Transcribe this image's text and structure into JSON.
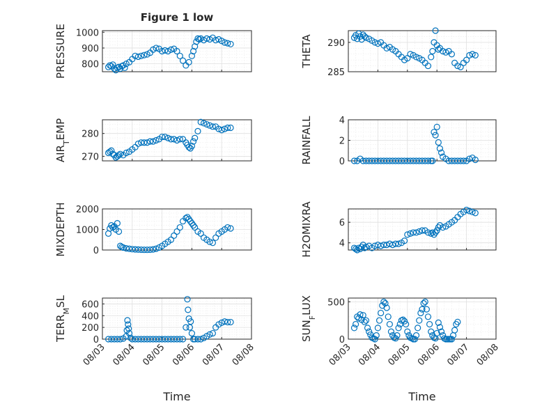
{
  "chart_data": [
    {
      "type": "scatter",
      "title": "Figure 1 low",
      "ylabel": "PRESSURE",
      "ylim": [
        750,
        1010
      ],
      "yticks": [
        800,
        900,
        1000
      ],
      "xlim": [
        "08/03",
        "08/08"
      ],
      "grid": true,
      "series": [
        {
          "x": [
            3.2,
            3.25,
            3.3,
            3.35,
            3.4,
            3.45,
            3.5,
            3.55,
            3.6,
            3.65,
            3.7,
            3.75,
            3.8,
            3.9,
            4.0,
            4.1,
            4.2,
            4.3,
            4.4,
            4.5,
            4.6,
            4.7,
            4.8,
            4.9,
            5.0,
            5.1,
            5.2,
            5.3,
            5.4,
            5.5,
            5.6,
            5.7,
            5.8,
            5.9,
            6.0,
            6.05,
            6.1,
            6.15,
            6.2,
            6.25,
            6.3,
            6.4,
            6.5,
            6.6,
            6.7,
            6.8,
            6.9,
            7.0,
            7.1,
            7.2,
            7.3
          ],
          "y": [
            780,
            790,
            785,
            795,
            770,
            760,
            775,
            780,
            770,
            785,
            790,
            775,
            800,
            810,
            830,
            850,
            845,
            850,
            855,
            860,
            870,
            890,
            900,
            895,
            880,
            885,
            880,
            890,
            895,
            880,
            850,
            820,
            790,
            810,
            850,
            880,
            910,
            940,
            960,
            955,
            960,
            950,
            960,
            955,
            965,
            950,
            955,
            945,
            935,
            930,
            925
          ]
        }
      ]
    },
    {
      "type": "scatter",
      "ylabel": "THETA",
      "ylim": [
        285,
        292
      ],
      "yticks": [
        285,
        290
      ],
      "xlim": [
        "08/03",
        "08/08"
      ],
      "grid": true,
      "series": [
        {
          "x": [
            3.2,
            3.25,
            3.3,
            3.35,
            3.4,
            3.45,
            3.5,
            3.55,
            3.6,
            3.7,
            3.8,
            3.9,
            4.0,
            4.1,
            4.2,
            4.3,
            4.4,
            4.5,
            4.6,
            4.7,
            4.8,
            4.9,
            5.0,
            5.1,
            5.2,
            5.3,
            5.4,
            5.5,
            5.6,
            5.7,
            5.8,
            5.85,
            5.9,
            5.95,
            6.0,
            6.05,
            6.1,
            6.2,
            6.3,
            6.4,
            6.5,
            6.6,
            6.7,
            6.8,
            6.9,
            7.0,
            7.1,
            7.2,
            7.3
          ],
          "y": [
            290.8,
            291.2,
            290.6,
            291.5,
            291.0,
            290.5,
            291.3,
            291.0,
            290.8,
            290.6,
            290.3,
            290.0,
            289.8,
            290.0,
            289.5,
            289.0,
            289.2,
            288.8,
            288.5,
            288.0,
            287.5,
            287.0,
            287.3,
            288.0,
            287.8,
            287.5,
            287.3,
            287.0,
            286.5,
            286.0,
            287.5,
            288.5,
            290.0,
            292.0,
            289.5,
            288.8,
            289.0,
            288.5,
            288.3,
            288.5,
            288.0,
            286.5,
            286.0,
            285.8,
            286.5,
            287.0,
            287.8,
            288.0,
            287.8
          ]
        }
      ]
    },
    {
      "type": "scatter",
      "ylabel": "AIR_TEMP",
      "ylim": [
        268,
        286
      ],
      "yticks": [
        270,
        280
      ],
      "xlim": [
        "08/03",
        "08/08"
      ],
      "grid": true,
      "series": [
        {
          "x": [
            3.2,
            3.25,
            3.3,
            3.35,
            3.4,
            3.45,
            3.5,
            3.55,
            3.6,
            3.7,
            3.8,
            3.9,
            4.0,
            4.1,
            4.2,
            4.3,
            4.4,
            4.5,
            4.6,
            4.7,
            4.8,
            4.9,
            5.0,
            5.1,
            5.2,
            5.3,
            5.4,
            5.5,
            5.6,
            5.7,
            5.8,
            5.85,
            5.9,
            5.95,
            6.0,
            6.05,
            6.1,
            6.2,
            6.3,
            6.4,
            6.5,
            6.6,
            6.7,
            6.8,
            6.9,
            7.0,
            7.1,
            7.2,
            7.3
          ],
          "y": [
            271.5,
            272.0,
            272.5,
            271.0,
            270.5,
            269.5,
            270.0,
            270.5,
            271.0,
            270.5,
            271.5,
            272.0,
            273.0,
            274.0,
            275.5,
            276.0,
            276.0,
            276.0,
            276.5,
            276.5,
            277.0,
            277.5,
            278.5,
            278.5,
            278.0,
            277.5,
            277.5,
            277.0,
            277.5,
            277.5,
            276.0,
            275.0,
            274.0,
            273.5,
            274.5,
            276.5,
            278.0,
            281.0,
            285.0,
            284.5,
            284.0,
            283.5,
            283.0,
            283.0,
            282.0,
            281.5,
            282.0,
            282.5,
            282.5
          ]
        }
      ]
    },
    {
      "type": "scatter",
      "ylabel": "RAINFALL",
      "ylim": [
        0,
        4
      ],
      "yticks": [
        0,
        2,
        4
      ],
      "xlim": [
        "08/03",
        "08/08"
      ],
      "grid": true,
      "series": [
        {
          "x": [
            3.2,
            3.3,
            3.4,
            3.5,
            3.6,
            3.7,
            3.8,
            3.9,
            4.0,
            4.1,
            4.2,
            4.3,
            4.4,
            4.5,
            4.6,
            4.7,
            4.8,
            4.9,
            5.0,
            5.1,
            5.2,
            5.3,
            5.4,
            5.5,
            5.6,
            5.7,
            5.8,
            5.85,
            5.9,
            5.95,
            6.0,
            6.05,
            6.1,
            6.15,
            6.2,
            6.3,
            6.4,
            6.5,
            6.6,
            6.7,
            6.8,
            6.9,
            7.0,
            7.1,
            7.2,
            7.3
          ],
          "y": [
            0,
            0,
            0.2,
            0,
            0,
            0,
            0,
            0,
            0,
            0,
            0,
            0,
            0,
            0,
            0,
            0,
            0,
            0,
            0,
            0,
            0,
            0,
            0,
            0,
            0,
            0,
            0,
            0,
            2.8,
            2.5,
            3.3,
            1.8,
            1.2,
            0.8,
            0.4,
            0.2,
            0,
            0,
            0,
            0,
            0,
            0,
            0,
            0.2,
            0.3,
            0.1
          ]
        }
      ]
    },
    {
      "type": "scatter",
      "ylabel": "MIXDEPTH",
      "ylim": [
        0,
        2000
      ],
      "yticks": [
        0,
        1000,
        2000
      ],
      "xlim": [
        "08/03",
        "08/08"
      ],
      "grid": true,
      "series": [
        {
          "x": [
            3.2,
            3.25,
            3.3,
            3.35,
            3.4,
            3.45,
            3.5,
            3.55,
            3.6,
            3.65,
            3.7,
            3.8,
            3.9,
            4.0,
            4.1,
            4.2,
            4.3,
            4.4,
            4.5,
            4.6,
            4.7,
            4.8,
            4.9,
            5.0,
            5.1,
            5.2,
            5.3,
            5.4,
            5.5,
            5.6,
            5.7,
            5.8,
            5.85,
            5.9,
            5.95,
            6.0,
            6.05,
            6.1,
            6.2,
            6.3,
            6.4,
            6.5,
            6.6,
            6.7,
            6.8,
            6.9,
            7.0,
            7.1,
            7.2,
            7.3
          ],
          "y": [
            800,
            1050,
            1200,
            1100,
            1150,
            1000,
            1300,
            900,
            200,
            150,
            120,
            80,
            60,
            40,
            30,
            20,
            15,
            10,
            10,
            15,
            30,
            60,
            120,
            200,
            300,
            400,
            500,
            700,
            900,
            1100,
            1400,
            1550,
            1600,
            1500,
            1400,
            1300,
            1200,
            1100,
            900,
            800,
            600,
            500,
            400,
            350,
            600,
            800,
            900,
            1000,
            1100,
            1050
          ]
        }
      ]
    },
    {
      "type": "scatter",
      "ylabel": "H2OMIXRA",
      "ylim": [
        3.3,
        7.3
      ],
      "yticks": [
        4,
        6
      ],
      "xlim": [
        "08/03",
        "08/08"
      ],
      "grid": true,
      "series": [
        {
          "x": [
            3.2,
            3.25,
            3.3,
            3.35,
            3.4,
            3.45,
            3.5,
            3.55,
            3.6,
            3.7,
            3.8,
            3.9,
            4.0,
            4.1,
            4.2,
            4.3,
            4.4,
            4.5,
            4.6,
            4.7,
            4.8,
            4.9,
            5.0,
            5.1,
            5.2,
            5.3,
            5.4,
            5.5,
            5.6,
            5.7,
            5.8,
            5.85,
            5.9,
            5.95,
            6.0,
            6.05,
            6.1,
            6.2,
            6.3,
            6.4,
            6.5,
            6.6,
            6.7,
            6.8,
            6.9,
            7.0,
            7.1,
            7.2,
            7.3
          ],
          "y": [
            3.5,
            3.4,
            3.3,
            3.5,
            3.4,
            3.6,
            3.8,
            3.5,
            3.6,
            3.7,
            3.5,
            3.7,
            3.8,
            3.7,
            3.8,
            3.8,
            3.9,
            3.8,
            3.9,
            3.9,
            4.0,
            4.2,
            4.8,
            4.9,
            5.0,
            5.0,
            5.1,
            5.2,
            5.2,
            5.0,
            4.9,
            5.0,
            4.8,
            5.0,
            5.2,
            5.5,
            5.7,
            5.5,
            5.6,
            5.8,
            6.0,
            6.2,
            6.5,
            6.8,
            7.0,
            7.2,
            7.1,
            7.0,
            6.9
          ]
        }
      ]
    },
    {
      "type": "scatter",
      "ylabel": "TERR_MSL",
      "ylim": [
        0,
        700
      ],
      "yticks": [
        0,
        200,
        400,
        600
      ],
      "xlim": [
        "08/03",
        "08/08"
      ],
      "xticks": [
        "08/03",
        "08/04",
        "08/05",
        "08/06",
        "08/07",
        "08/08"
      ],
      "xlabel": "Time",
      "grid": true,
      "series": [
        {
          "x": [
            3.2,
            3.3,
            3.4,
            3.5,
            3.6,
            3.7,
            3.8,
            3.82,
            3.84,
            3.86,
            3.88,
            3.9,
            3.95,
            4.0,
            4.1,
            4.2,
            4.3,
            4.4,
            4.5,
            4.6,
            4.7,
            4.8,
            4.9,
            5.0,
            5.1,
            5.2,
            5.3,
            5.4,
            5.5,
            5.6,
            5.7,
            5.8,
            5.85,
            5.87,
            5.9,
            5.93,
            5.96,
            6.0,
            6.05,
            6.1,
            6.2,
            6.3,
            6.4,
            6.5,
            6.6,
            6.7,
            6.8,
            6.9,
            7.0,
            7.1,
            7.2,
            7.3
          ],
          "y": [
            0,
            0,
            0,
            0,
            0,
            10,
            50,
            150,
            320,
            250,
            180,
            100,
            20,
            0,
            0,
            0,
            0,
            0,
            0,
            0,
            0,
            0,
            0,
            0,
            0,
            0,
            0,
            0,
            0,
            0,
            0,
            200,
            680,
            500,
            350,
            200,
            300,
            100,
            0,
            0,
            0,
            0,
            20,
            50,
            80,
            100,
            200,
            250,
            280,
            300,
            290,
            290
          ]
        }
      ]
    },
    {
      "type": "scatter",
      "ylabel": "SUN_FLUX",
      "ylim": [
        0,
        550
      ],
      "yticks": [
        0,
        500
      ],
      "xlim": [
        "08/03",
        "08/08"
      ],
      "xticks": [
        "08/03",
        "08/04",
        "08/05",
        "08/06",
        "08/07",
        "08/08"
      ],
      "xlabel": "Time",
      "grid": true,
      "series": [
        {
          "x": [
            3.2,
            3.25,
            3.3,
            3.35,
            3.4,
            3.45,
            3.5,
            3.55,
            3.6,
            3.65,
            3.7,
            3.75,
            3.8,
            3.85,
            3.9,
            3.95,
            4.0,
            4.05,
            4.1,
            4.15,
            4.2,
            4.25,
            4.3,
            4.35,
            4.4,
            4.45,
            4.5,
            4.55,
            4.6,
            4.65,
            4.7,
            4.75,
            4.8,
            4.85,
            4.9,
            4.95,
            5.0,
            5.05,
            5.1,
            5.15,
            5.2,
            5.25,
            5.3,
            5.35,
            5.4,
            5.45,
            5.5,
            5.55,
            5.6,
            5.65,
            5.7,
            5.75,
            5.8,
            5.85,
            5.9,
            5.95,
            6.0,
            6.05,
            6.1,
            6.15,
            6.2,
            6.25,
            6.3,
            6.35,
            6.4,
            6.45,
            6.5,
            6.55,
            6.6,
            6.65,
            6.7
          ],
          "y": [
            150,
            200,
            300,
            280,
            330,
            260,
            320,
            230,
            250,
            150,
            100,
            60,
            20,
            10,
            0,
            50,
            150,
            250,
            350,
            450,
            500,
            480,
            420,
            300,
            200,
            100,
            50,
            20,
            10,
            50,
            150,
            200,
            250,
            260,
            240,
            200,
            100,
            50,
            20,
            10,
            0,
            0,
            50,
            150,
            250,
            350,
            400,
            480,
            500,
            400,
            300,
            200,
            100,
            50,
            20,
            10,
            80,
            220,
            160,
            100,
            50,
            10,
            0,
            0,
            0,
            0,
            0,
            50,
            120,
            200,
            230
          ]
        }
      ]
    }
  ]
}
